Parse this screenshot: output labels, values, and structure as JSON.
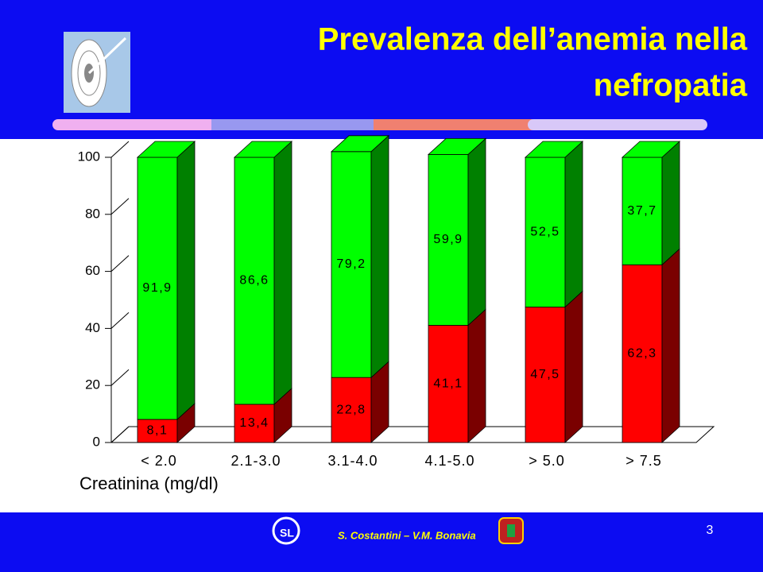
{
  "title": "Prevalenza dell’anemia nella nefropatia",
  "chart_data": {
    "type": "stacked-bar-3d",
    "categories": [
      "< 2.0",
      "2.1-3.0",
      "3.1-4.0",
      "4.1-5.0",
      "> 5.0",
      "> 7.5"
    ],
    "series": [
      {
        "color": "#ff0000",
        "side_color": "#7a0000",
        "values": [
          8.1,
          13.4,
          22.8,
          41.1,
          47.5,
          62.3
        ],
        "value_labels": [
          "8,1",
          "13,4",
          "22,8",
          "41,1",
          "47,5",
          "62,3"
        ]
      },
      {
        "color": "#00ff00",
        "side_color": "#008000",
        "values": [
          91.9,
          86.6,
          79.2,
          59.9,
          52.5,
          37.7
        ],
        "value_labels": [
          "91,9",
          "86,6",
          "79,2",
          "59,9",
          "52,5",
          "37,7"
        ]
      }
    ],
    "x_label": "Creatinina (mg/dl)",
    "ylim": [
      0,
      100
    ],
    "yticks": [
      0,
      20,
      40,
      60,
      80,
      100
    ]
  },
  "footer": {
    "author": "S. Costantini – V.M. Bonavia",
    "slide_number": 3
  }
}
